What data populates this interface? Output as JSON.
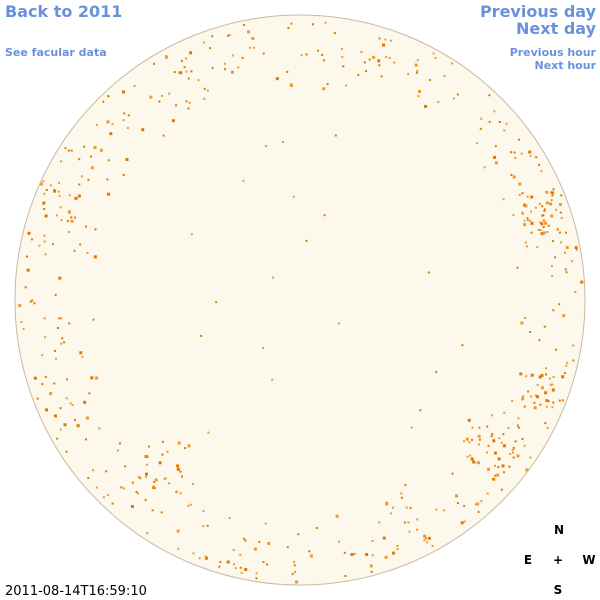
{
  "links": {
    "back": "Back to 2011",
    "facular": "See facular data",
    "previous_day": "Previous day",
    "next_day": "Next day",
    "previous_hour": "Previous hour",
    "next_hour": "Next hour"
  },
  "timestamp": "2011-08-14T16:59:10",
  "compass": {
    "north": "N",
    "east": "E",
    "center": "+",
    "west": "W",
    "south": "S"
  }
}
